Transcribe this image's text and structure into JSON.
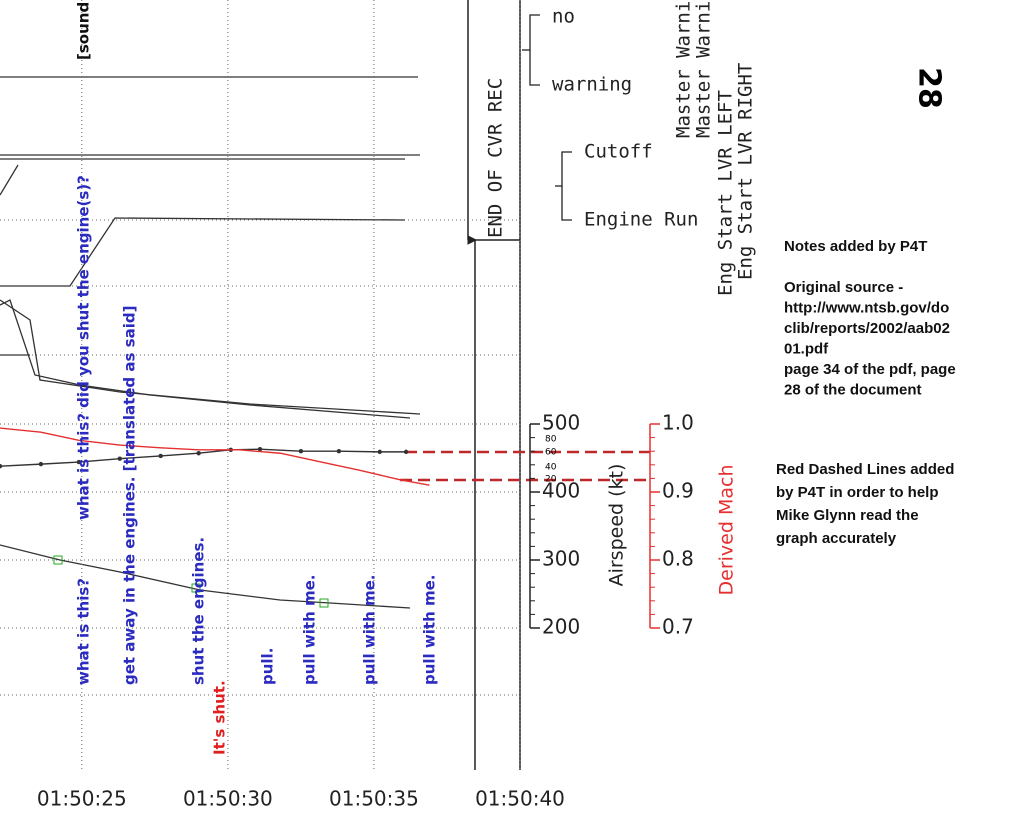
{
  "chart_data": {
    "type": "line",
    "xticks": [
      {
        "value": 6625,
        "label": "01:50:25"
      },
      {
        "value": 6630,
        "label": "01:50:30"
      },
      {
        "value": 6635,
        "label": "01:50:35"
      },
      {
        "value": 6640,
        "label": "01:50:40"
      }
    ],
    "xlim": [
      6622.2,
      6640
    ],
    "ylabel": "Airspeed (kt)",
    "ylim": [
      200,
      500
    ],
    "yticks": [
      200,
      300,
      400,
      500
    ],
    "y2label": "Derived Mach",
    "y2lim": [
      0.7,
      1.0
    ],
    "y2ticks": [
      0.7,
      0.8,
      0.9,
      {
        "value": 1.0,
        "label": "1.0"
      }
    ],
    "series": [
      {
        "color": "#333333",
        "axis": "y",
        "x": [
          6622.2,
          6623.6,
          6624.9,
          6626.3,
          6627.7,
          6629.0,
          6630.1,
          6631.1,
          6632.5,
          6633.8,
          6635.2,
          6636.1
        ],
        "values": [
          438,
          441,
          444,
          449,
          453,
          457,
          462,
          463,
          460,
          460,
          459,
          459
        ]
      },
      {
        "color": "#e53030",
        "axis": "y2",
        "x": [
          6622.2,
          6623.6,
          6624.9,
          6626.3,
          6627.7,
          6629.0,
          6630.4,
          6631.8,
          6633.2,
          6634.5,
          6635.9,
          6636.9
        ],
        "values": [
          0.994,
          0.988,
          0.976,
          0.969,
          0.965,
          0.962,
          0.962,
          0.957,
          0.944,
          0.932,
          0.918,
          0.91
        ]
      }
    ],
    "annotations": [
      {
        "text": "[sound",
        "color": "#111111"
      },
      {
        "text": "what is this?  did you shut the engine(s)?",
        "color": "#2b2bc0"
      },
      {
        "text": "what is this?",
        "color": "#2b2bc0"
      },
      {
        "text": "get away in the engines. [translated as said]",
        "color": "#2b2bc0"
      },
      {
        "text": "shut the engines.",
        "color": "#2b2bc0"
      },
      {
        "text": "It's shut.",
        "color": "#e02020"
      },
      {
        "text": "pull.",
        "color": "#2b2bc0"
      },
      {
        "text": "pull with me.",
        "color": "#2b2bc0"
      },
      {
        "text": "pull with me.",
        "color": "#2b2bc0"
      },
      {
        "text": "pull with me.",
        "color": "#2b2bc0"
      }
    ],
    "end_label": "END OF CVR REC",
    "discrete_labels": [
      "no",
      "warning",
      "Master Warnin",
      "Master Warnin",
      "Cutoff",
      "Engine Run",
      "Eng Start LVR LEFT",
      "Eng Start LVR RIGHT"
    ],
    "page_number": "28",
    "notes": [
      "Notes added by P4T",
      "",
      "Original source -",
      "http://www.ntsb.gov/do",
      "clib/reports/2002/aab02",
      "01.pdf",
      "page 34 of the pdf, page",
      "28 of the document"
    ],
    "red_note": [
      "Red Dashed Lines added",
      "by P4T in order to help",
      "Mike Glynn read the",
      "graph accurately"
    ],
    "dash_labels": [
      "80",
      "60",
      "40",
      "20"
    ]
  }
}
